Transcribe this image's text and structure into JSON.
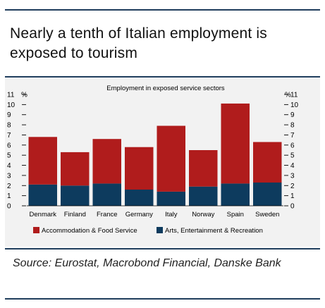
{
  "title": "Nearly a tenth of Italian employment is exposed to tourism",
  "source": "Source: Eurostat, Macrobond Financial, Danske Bank",
  "chart_data": {
    "type": "bar",
    "stacked": true,
    "title": "Employment in exposed service sectors",
    "ylabel_left": "%",
    "ylabel_right": "%",
    "ylim": [
      0,
      11
    ],
    "yticks": [
      0,
      1,
      2,
      3,
      4,
      5,
      6,
      7,
      8,
      9,
      10,
      11
    ],
    "categories": [
      "Denmark",
      "Finland",
      "France",
      "Germany",
      "Italy",
      "Norway",
      "Spain",
      "Sweden"
    ],
    "series": [
      {
        "name": "Arts, Entertainment & Recreation",
        "color": "#0d3b5e",
        "values": [
          2.1,
          2.0,
          2.2,
          1.6,
          1.4,
          1.9,
          2.2,
          2.3
        ]
      },
      {
        "name": "Accommodation & Food Service",
        "color": "#b01c1c",
        "values": [
          4.7,
          3.3,
          4.4,
          4.2,
          6.5,
          3.6,
          7.9,
          4.0
        ]
      }
    ],
    "legend_position": "bottom",
    "legend_order": [
      "Accommodation & Food Service",
      "Arts, Entertainment & Recreation"
    ]
  }
}
